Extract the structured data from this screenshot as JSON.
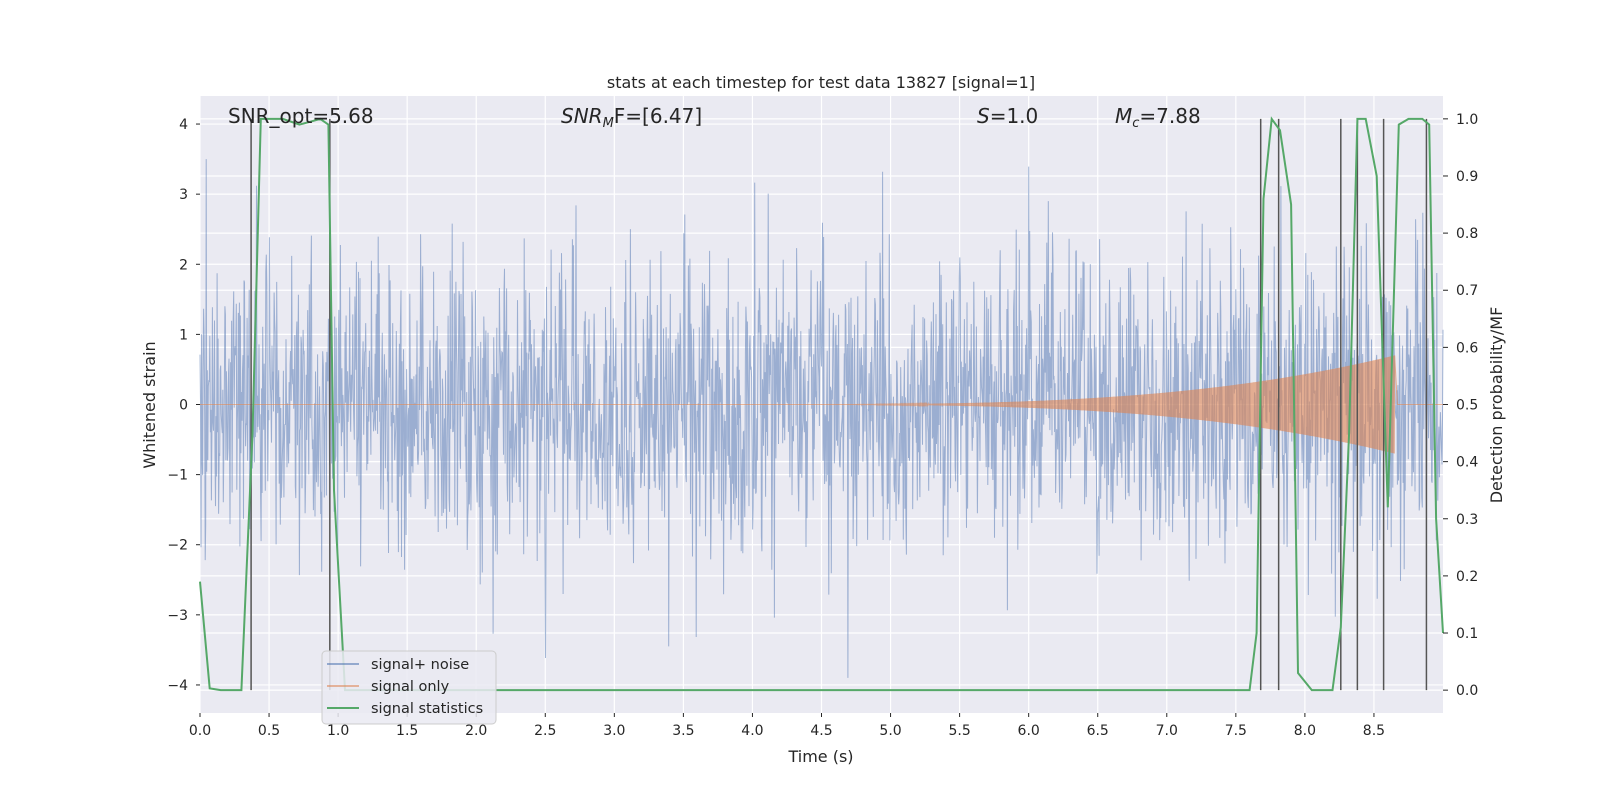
{
  "chart_data": {
    "type": "line",
    "title": "stats at each timestep for test data 13827 [signal=1]",
    "xlabel": "Time (s)",
    "ylabel_left": "Whitened strain",
    "ylabel_right": "Detection probability/MF",
    "xlim": [
      0.0,
      9.0
    ],
    "ylim_left": [
      -4.4,
      4.4
    ],
    "ylim_right": [
      -0.04,
      1.04
    ],
    "x_ticks": [
      "0.0",
      "0.5",
      "1.0",
      "1.5",
      "2.0",
      "2.5",
      "3.0",
      "3.5",
      "4.0",
      "4.5",
      "5.0",
      "5.5",
      "6.0",
      "6.5",
      "7.0",
      "7.5",
      "8.0",
      "8.5"
    ],
    "y_left_ticks": [
      "4",
      "3",
      "2",
      "1",
      "0",
      "−1",
      "−2",
      "−3",
      "−4"
    ],
    "y_right_ticks": [
      "1.0",
      "0.9",
      "0.8",
      "0.7",
      "0.6",
      "0.5",
      "0.4",
      "0.3",
      "0.2",
      "0.1",
      "0.0"
    ],
    "grid": true,
    "legend_position": "lower-left",
    "annotations": {
      "snr_opt": "SNR_opt=5.68",
      "snr_mf_main": "SNR",
      "snr_mf_sub": "M",
      "snr_mf_tail": "F=[6.47]",
      "s_main": "S",
      "s_tail": "=1.0",
      "mc_main": "M",
      "mc_sub": "c",
      "mc_tail": "=7.88"
    },
    "series": [
      {
        "name": "signal+ noise",
        "color": "#4c72b0",
        "description_values": "whitened noise, approx. amplitude ±1.6 std, peaks to about ±3.5",
        "std": 1.0
      },
      {
        "name": "signal only",
        "color": "#dd8452",
        "chirp_start_s": 4.0,
        "chirp_end_s": 8.65,
        "peak_amplitude": 0.7
      },
      {
        "name": "signal statistics",
        "color": "#55a868",
        "x": [
          0.0,
          0.07,
          0.15,
          0.3,
          0.38,
          0.44,
          0.5,
          0.6,
          0.72,
          0.8,
          0.87,
          0.93,
          0.97,
          1.05,
          2.0,
          5.0,
          7.6,
          7.65,
          7.7,
          7.76,
          7.82,
          7.9,
          7.95,
          8.05,
          8.2,
          8.26,
          8.32,
          8.38,
          8.44,
          8.52,
          8.6,
          8.68,
          8.75,
          8.85,
          8.9,
          8.95,
          9.0
        ],
        "values": [
          0.19,
          0.003,
          0.0,
          0.0,
          0.45,
          1.0,
          1.0,
          1.0,
          0.99,
          0.995,
          1.0,
          0.99,
          0.35,
          0.0,
          0.0,
          0.0,
          0.0,
          0.1,
          0.86,
          1.0,
          0.98,
          0.85,
          0.03,
          0.0,
          0.0,
          0.11,
          0.45,
          1.0,
          1.0,
          0.9,
          0.32,
          0.99,
          1.0,
          1.0,
          0.99,
          0.3,
          0.1
        ]
      }
    ],
    "vertical_markers": [
      0.37,
      0.94,
      7.68,
      7.81,
      8.26,
      8.38,
      8.57,
      8.88
    ]
  },
  "legend": {
    "items": [
      {
        "label": "signal+ noise",
        "color": "#4c72b0"
      },
      {
        "label": "signal only",
        "color": "#dd8452"
      },
      {
        "label": "signal statistics",
        "color": "#55a868"
      }
    ]
  }
}
